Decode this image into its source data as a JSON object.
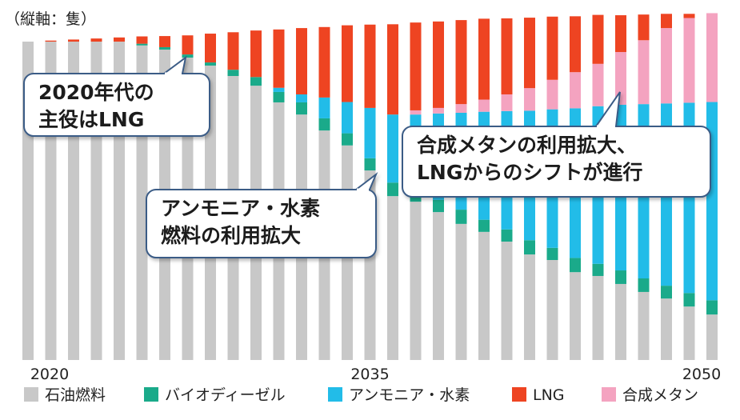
{
  "chart_data": {
    "type": "stacked_bar",
    "axis_note": "（縦軸：隻）",
    "categories": [
      "2020",
      null,
      null,
      null,
      null,
      null,
      null,
      null,
      null,
      null,
      null,
      null,
      null,
      null,
      null,
      "2035",
      null,
      null,
      null,
      null,
      null,
      null,
      null,
      null,
      null,
      null,
      null,
      null,
      null,
      null,
      "2050"
    ],
    "ylim": [
      0,
      100
    ],
    "series": [
      {
        "name": "石油燃料",
        "color": "#c8c8c8",
        "values": [
          91.7,
          91.7,
          91.7,
          91.7,
          91.7,
          90.6,
          89.4,
          87.1,
          84.8,
          81.8,
          79.0,
          74.2,
          70.7,
          66.1,
          61.8,
          54.6,
          47.2,
          45.6,
          42.6,
          39.2,
          36.9,
          34.1,
          30.4,
          28.8,
          25.3,
          24.2,
          21.9,
          19.6,
          17.7,
          15.4,
          13.1
        ]
      },
      {
        "name": "バイオディーゼル",
        "color": "#1aaa8a",
        "values": [
          0,
          0,
          0,
          0,
          0,
          0.5,
          0.7,
          0.9,
          0.9,
          1.8,
          2.5,
          3.0,
          3.5,
          3.5,
          3.5,
          3.5,
          3.9,
          3.9,
          3.5,
          4.1,
          3.5,
          3.5,
          4.1,
          3.5,
          4.1,
          3.5,
          3.9,
          3.9,
          3.7,
          3.9,
          4.1
        ]
      },
      {
        "name": "アンモニア・水素",
        "color": "#22bce8",
        "values": [
          0,
          0,
          0,
          0,
          0,
          0,
          0,
          0,
          0,
          0,
          0,
          1.2,
          2.3,
          6.0,
          9.0,
          14.5,
          19.6,
          21.2,
          24.9,
          27.9,
          31.1,
          34.1,
          37.3,
          39.9,
          43.1,
          45.4,
          47.7,
          50.2,
          52.5,
          54.8,
          57.1
        ]
      },
      {
        "name": "合成メタン",
        "color": "#f4a3c0",
        "values": [
          0,
          0,
          0,
          0,
          0,
          0,
          0,
          0,
          0,
          0,
          0,
          0,
          0,
          0,
          0,
          0,
          0,
          1.2,
          1.6,
          2.5,
          3.5,
          4.8,
          6.5,
          8.5,
          10.4,
          12.2,
          15.2,
          18.4,
          21.7,
          24.4,
          25.6
        ]
      },
      {
        "name": "LNG",
        "color": "#ee4422",
        "values": [
          0,
          0.3,
          0.6,
          0.9,
          1.2,
          2.1,
          3.2,
          5.5,
          8.3,
          10.8,
          13.4,
          16.8,
          19.1,
          20.3,
          22.1,
          24.0,
          26.0,
          25.3,
          24.9,
          24.2,
          23.3,
          21.9,
          20.3,
          18.2,
          16.1,
          14.1,
          10.6,
          7.4,
          4.1,
          1.2,
          0
        ]
      }
    ],
    "annotations": [
      {
        "lines": [
          "2020年代の",
          "主役はLNG"
        ]
      },
      {
        "lines": [
          "合成メタンの利用拡大、",
          "LNGからのシフトが進行"
        ]
      },
      {
        "lines": [
          "アンモニア・水素",
          "燃料の利用拡大"
        ]
      }
    ]
  }
}
